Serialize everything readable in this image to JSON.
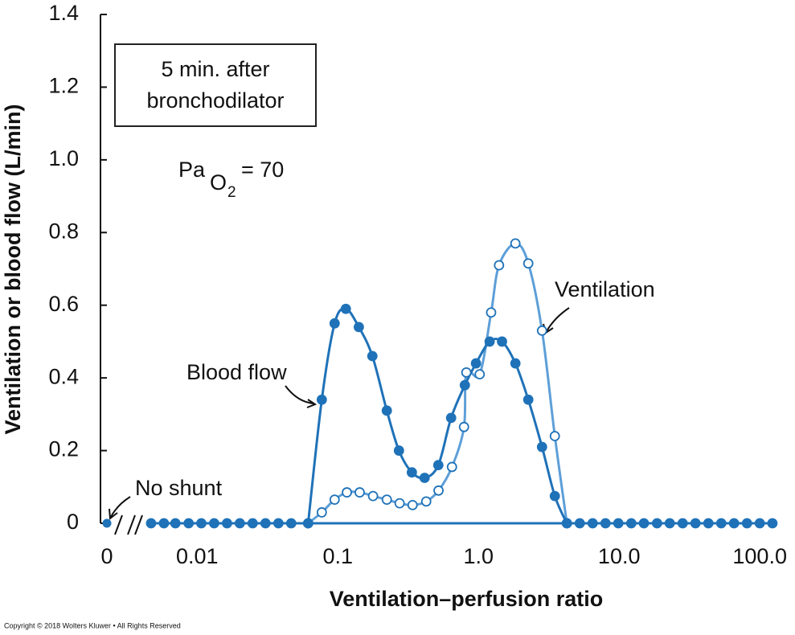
{
  "chart_data": {
    "type": "scatter",
    "box_text": [
      "5 min. after",
      "bronchodilator"
    ],
    "pao2": {
      "base": "Pa",
      "sub": "O",
      "subsub": "2",
      "rest": "= 70"
    },
    "xlabel": "Ventilation–perfusion ratio",
    "ylabel": "Ventilation or blood flow (L/min)",
    "copyright": "Copyright © 2018 Wolters Kluwer • All Rights Reserved",
    "log_x": true,
    "xlim": [
      0.002,
      150
    ],
    "ylim": [
      0,
      1.4
    ],
    "xticks": [
      {
        "value": 0,
        "label": "0"
      },
      0.01,
      0.1,
      {
        "value": 1,
        "label": "1.0"
      },
      {
        "value": 10,
        "label": "10.0"
      },
      {
        "value": 100,
        "label": "100.0"
      }
    ],
    "yticks": [
      0,
      0.2,
      0.4,
      0.6,
      0.8,
      {
        "value": 1,
        "label": "1.0"
      },
      1.2,
      1.4
    ],
    "shunt": {
      "label": "No shunt",
      "x": 0,
      "value": 0
    },
    "series": [
      {
        "name": "Blood flow",
        "color": "#1f72b8",
        "marker": "filled",
        "x": [
          0.0047,
          0.0058,
          0.007,
          0.0087,
          0.0107,
          0.0132,
          0.0163,
          0.0201,
          0.0248,
          0.0306,
          0.0378,
          0.0466,
          0.0615,
          0.0769,
          0.0949,
          0.114,
          0.141,
          0.176,
          0.223,
          0.272,
          0.336,
          0.414,
          0.518,
          0.639,
          0.8,
          0.96,
          1.2,
          1.47,
          1.83,
          2.26,
          2.83,
          3.49,
          4.25,
          5.25,
          6.48,
          8.0,
          9.87,
          12.2,
          15.0,
          18.6,
          22.9,
          28.3,
          34.9,
          43.1,
          53.2,
          65.6,
          81.1,
          100,
          123
        ],
        "values": [
          0,
          0,
          0,
          0,
          0,
          0,
          0,
          0,
          0,
          0,
          0,
          0,
          0,
          0.34,
          0.55,
          0.59,
          0.54,
          0.46,
          0.31,
          0.2,
          0.14,
          0.125,
          0.16,
          0.29,
          0.38,
          0.44,
          0.5,
          0.5,
          0.44,
          0.34,
          0.21,
          0.075,
          0,
          0,
          0,
          0,
          0,
          0,
          0,
          0,
          0,
          0,
          0,
          0,
          0,
          0,
          0,
          0,
          0
        ]
      },
      {
        "name": "Ventilation",
        "color": "#5d9fd8",
        "marker": "open",
        "x": [
          0.0615,
          0.0769,
          0.0949,
          0.116,
          0.143,
          0.178,
          0.223,
          0.275,
          0.34,
          0.425,
          0.52,
          0.648,
          0.789,
          0.82,
          1.02,
          1.23,
          1.4,
          1.83,
          2.26,
          2.83,
          3.49,
          4.25
        ],
        "values": [
          0,
          0.03,
          0.065,
          0.085,
          0.085,
          0.075,
          0.065,
          0.055,
          0.05,
          0.06,
          0.09,
          0.155,
          0.265,
          0.415,
          0.41,
          0.58,
          0.71,
          0.77,
          0.715,
          0.53,
          0.24,
          0
        ]
      }
    ]
  }
}
